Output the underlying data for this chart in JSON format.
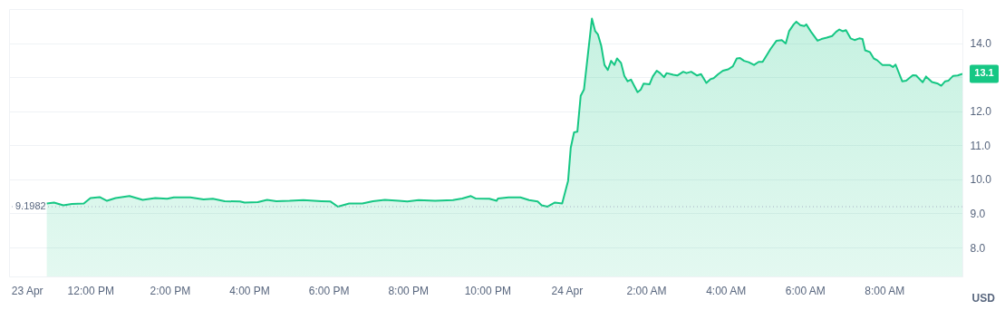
{
  "chart_data": {
    "type": "area",
    "ylabel": "USD",
    "xlim": [
      "--04-23T09:57",
      "--04-24T09:58"
    ],
    "ylim": [
      7.15,
      15.0
    ],
    "xticks": [
      {
        "value": "--04-23T10:24",
        "label": "23 Apr"
      },
      {
        "value": "--04-23T12:00",
        "label": "12:00 PM"
      },
      {
        "value": "--04-23T14:00",
        "label": "2:00 PM"
      },
      {
        "value": "--04-23T16:00",
        "label": "4:00 PM"
      },
      {
        "value": "--04-23T18:00",
        "label": "6:00 PM"
      },
      {
        "value": "--04-23T20:00",
        "label": "8:00 PM"
      },
      {
        "value": "--04-23T22:00",
        "label": "10:00 PM"
      },
      {
        "value": "--04-24T00:00",
        "label": "24 Apr"
      },
      {
        "value": "--04-24T02:00",
        "label": "2:00 AM"
      },
      {
        "value": "--04-24T04:00",
        "label": "4:00 AM"
      },
      {
        "value": "--04-24T06:00",
        "label": "6:00 AM"
      },
      {
        "value": "--04-24T08:00",
        "label": "8:00 AM"
      }
    ],
    "yticks": [
      {
        "value": 8,
        "label": "8.0"
      },
      {
        "value": 9,
        "label": "9.0"
      },
      {
        "value": 10,
        "label": "10.0"
      },
      {
        "value": 11,
        "label": "11.0"
      },
      {
        "value": 12,
        "label": "12.0"
      },
      {
        "value": 13,
        "label": null
      },
      {
        "value": 14,
        "label": "14.0"
      }
    ],
    "grid": "y",
    "x": [
      "--04-23T10:54",
      "--04-23T11:05",
      "--04-23T11:19",
      "--04-23T11:32",
      "--04-23T11:50",
      "--04-23T12:00",
      "--04-23T12:14",
      "--04-23T12:25",
      "--04-23T12:38",
      "--04-23T12:59",
      "--04-23T13:19",
      "--04-23T13:38",
      "--04-23T13:56",
      "--04-23T14:06",
      "--04-23T14:31",
      "--04-23T14:51",
      "--04-23T15:05",
      "--04-23T15:23",
      "--04-23T15:46",
      "--04-23T15:53",
      "--04-23T16:13",
      "--04-23T16:27",
      "--04-23T16:41",
      "--04-23T17:01",
      "--04-23T17:22",
      "--04-23T17:49",
      "--04-23T18:03",
      "--04-23T18:14",
      "--04-23T18:31",
      "--04-23T18:51",
      "--04-23T19:07",
      "--04-23T19:25",
      "--04-23T19:46",
      "--04-23T19:59",
      "--04-23T20:16",
      "--04-23T20:41",
      "--04-23T21:08",
      "--04-23T21:22",
      "--04-23T21:35",
      "--04-23T21:42",
      "--04-23T22:03",
      "--04-23T22:14",
      "--04-23T22:16",
      "--04-23T22:32",
      "--04-23T22:50",
      "--04-23T23:03",
      "--04-23T23:16",
      "--04-23T23:22",
      "--04-23T23:31",
      "--04-23T23:42",
      "--04-23T23:53",
      "--04-24T00:02",
      "--04-24T00:06",
      "--04-24T00:11",
      "--04-24T00:16",
      "--04-24T00:21",
      "--04-24T00:26",
      "--04-24T00:38",
      "--04-24T00:43",
      "--04-24T00:47",
      "--04-24T00:52",
      "--04-24T00:57",
      "--04-24T01:02",
      "--04-24T01:07",
      "--04-24T01:12",
      "--04-24T01:16",
      "--04-24T01:22",
      "--04-24T01:27",
      "--04-24T01:32",
      "--04-24T01:37",
      "--04-24T01:47",
      "--04-24T01:52",
      "--04-24T01:56",
      "--04-24T02:05",
      "--04-24T02:10",
      "--04-24T02:16",
      "--04-24T02:21",
      "--04-24T02:27",
      "--04-24T02:31",
      "--04-24T02:41",
      "--04-24T02:47",
      "--04-24T02:56",
      "--04-24T03:01",
      "--04-24T03:08",
      "--04-24T03:17",
      "--04-24T03:23",
      "--04-24T03:31",
      "--04-24T03:37",
      "--04-24T03:42",
      "--04-24T03:49",
      "--04-24T03:56",
      "--04-24T04:04",
      "--04-24T04:11",
      "--04-24T04:17",
      "--04-24T04:22",
      "--04-24T04:28",
      "--04-24T04:35",
      "--04-24T04:43",
      "--04-24T04:50",
      "--04-24T04:56",
      "--04-24T05:03",
      "--04-24T05:08",
      "--04-24T05:17",
      "--04-24T05:25",
      "--04-24T05:31",
      "--04-24T05:36",
      "--04-24T05:43",
      "--04-24T05:47",
      "--04-24T05:53",
      "--04-24T05:59",
      "--04-24T06:02",
      "--04-24T06:10",
      "--04-24T06:19",
      "--04-24T06:25",
      "--04-24T06:33",
      "--04-24T06:41",
      "--04-24T06:47",
      "--04-24T06:52",
      "--04-24T06:57",
      "--04-24T07:02",
      "--04-24T07:09",
      "--04-24T07:15",
      "--04-24T07:22",
      "--04-24T07:27",
      "--04-24T07:31",
      "--04-24T07:38",
      "--04-24T07:44",
      "--04-24T07:49",
      "--04-24T07:57",
      "--04-24T08:08",
      "--04-24T08:13",
      "--04-24T08:17",
      "--04-24T08:27",
      "--04-24T08:33",
      "--04-24T08:43",
      "--04-24T08:48",
      "--04-24T08:58",
      "--04-24T09:03",
      "--04-24T09:12",
      "--04-24T09:21",
      "--04-24T09:26",
      "--04-24T09:32",
      "--04-24T09:37",
      "--04-24T09:44",
      "--04-24T09:51",
      "--04-24T09:58"
    ],
    "series": [
      {
        "color": "#16c784",
        "values": [
          9.29,
          9.32,
          9.24,
          9.28,
          9.29,
          9.45,
          9.48,
          9.37,
          9.45,
          9.51,
          9.4,
          9.45,
          9.43,
          9.47,
          9.47,
          9.41,
          9.43,
          9.36,
          9.35,
          9.32,
          9.33,
          9.4,
          9.36,
          9.37,
          9.39,
          9.36,
          9.35,
          9.2,
          9.29,
          9.29,
          9.36,
          9.4,
          9.37,
          9.35,
          9.39,
          9.37,
          9.39,
          9.44,
          9.51,
          9.44,
          9.43,
          9.37,
          9.44,
          9.47,
          9.47,
          9.39,
          9.35,
          9.24,
          9.2,
          9.32,
          9.29,
          9.96,
          10.93,
          11.38,
          11.4,
          12.45,
          12.64,
          14.72,
          14.35,
          14.26,
          13.93,
          13.36,
          13.21,
          13.48,
          13.36,
          13.55,
          13.42,
          13.04,
          12.88,
          12.93,
          12.56,
          12.64,
          12.81,
          12.79,
          13.02,
          13.19,
          13.12,
          13.0,
          13.12,
          13.07,
          13.05,
          13.16,
          13.12,
          13.16,
          13.05,
          13.09,
          12.83,
          12.94,
          12.97,
          13.09,
          13.19,
          13.23,
          13.32,
          13.55,
          13.56,
          13.48,
          13.44,
          13.36,
          13.45,
          13.45,
          13.67,
          13.83,
          14.07,
          14.09,
          13.99,
          14.35,
          14.55,
          14.63,
          14.53,
          14.5,
          14.55,
          14.31,
          14.07,
          14.12,
          14.16,
          14.21,
          14.33,
          14.4,
          14.35,
          14.38,
          14.14,
          14.09,
          14.14,
          14.12,
          13.79,
          13.74,
          13.55,
          13.5,
          13.36,
          13.36,
          13.3,
          13.37,
          12.88,
          12.9,
          13.06,
          13.05,
          12.85,
          13.02,
          12.86,
          12.81,
          12.75,
          12.88,
          12.9,
          13.04,
          13.05,
          13.1
        ]
      }
    ],
    "ref_lines": [
      {
        "axis": "y",
        "value": 9.1982,
        "label": "9.1982",
        "color": "#a6b0c3",
        "line_style": "dotted"
      }
    ],
    "annotations": [
      {
        "text": "13.1",
        "x": "--04-24T09:58",
        "y": 13.1
      }
    ]
  }
}
